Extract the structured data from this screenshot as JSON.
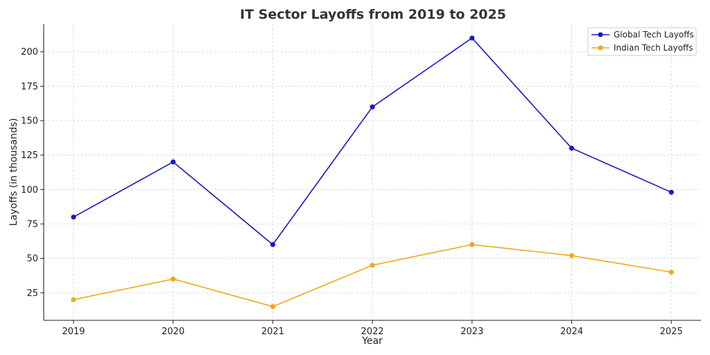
{
  "chart_data": {
    "type": "line",
    "title": "IT Sector Layoffs from 2019 to 2025",
    "xlabel": "Year",
    "ylabel": "Layoffs (in thousands)",
    "x": [
      "2019",
      "2020",
      "2021",
      "2022",
      "2023",
      "2024",
      "2025"
    ],
    "ylim": [
      5,
      220
    ],
    "yticks": [
      25,
      50,
      75,
      100,
      125,
      150,
      175,
      200
    ],
    "grid": true,
    "legend_position": "top-right",
    "series": [
      {
        "name": "Global Tech Layoffs",
        "color": "#1a16c8",
        "values": [
          80,
          120,
          60,
          160,
          210,
          130,
          98
        ]
      },
      {
        "name": "Indian Tech Layoffs",
        "color": "#f0a818",
        "values": [
          20,
          35,
          15,
          45,
          60,
          52,
          40
        ]
      }
    ]
  }
}
